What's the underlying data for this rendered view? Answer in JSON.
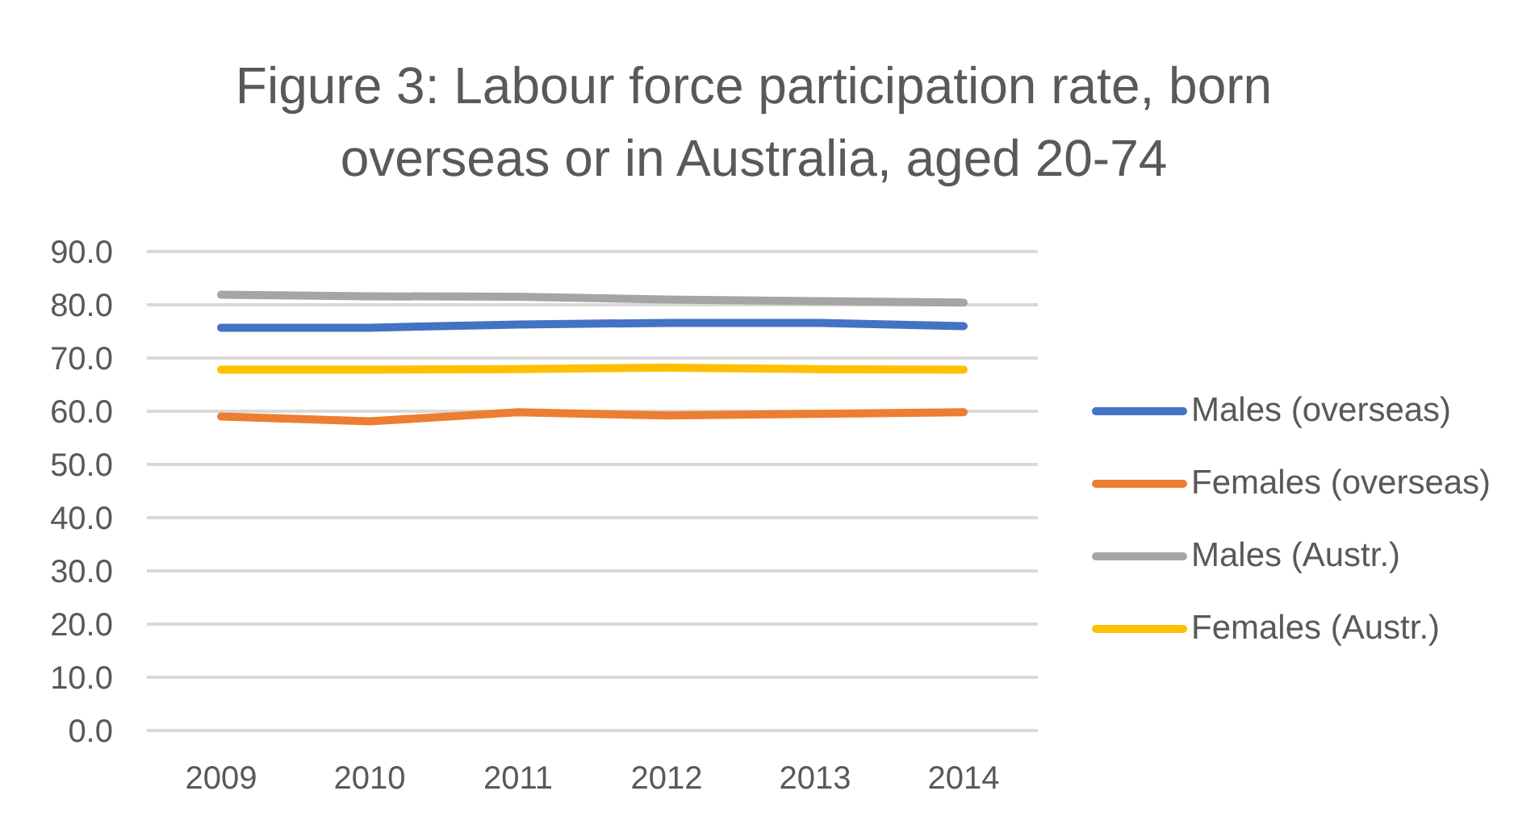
{
  "chart_data": {
    "type": "line",
    "title": "Figure 3: Labour force participation rate, born overseas or in Australia, aged 20-74",
    "categories": [
      "2009",
      "2010",
      "2011",
      "2012",
      "2013",
      "2014"
    ],
    "series": [
      {
        "name": "Males (overseas)",
        "color": "#4472c4",
        "values": [
          75.7,
          75.7,
          76.3,
          76.6,
          76.6,
          76.0
        ]
      },
      {
        "name": "Females (overseas)",
        "color": "#ed7d31",
        "values": [
          59.0,
          58.1,
          59.8,
          59.2,
          59.5,
          59.8
        ]
      },
      {
        "name": "Males (Austr.)",
        "color": "#a5a5a5",
        "values": [
          81.9,
          81.6,
          81.5,
          81.0,
          80.7,
          80.4
        ]
      },
      {
        "name": "Females (Austr.)",
        "color": "#ffc000",
        "values": [
          67.8,
          67.8,
          67.9,
          68.2,
          67.9,
          67.8
        ]
      }
    ],
    "ylim": [
      0,
      90
    ],
    "yticks": [
      {
        "value": 0,
        "label": "0.0"
      },
      {
        "value": 10,
        "label": "10.0"
      },
      {
        "value": 20,
        "label": "20.0"
      },
      {
        "value": 30,
        "label": "30.0"
      },
      {
        "value": 40,
        "label": "40.0"
      },
      {
        "value": 50,
        "label": "50.0"
      },
      {
        "value": 60,
        "label": "60.0"
      },
      {
        "value": 70,
        "label": "70.0"
      },
      {
        "value": 80,
        "label": "80.0"
      },
      {
        "value": 90,
        "label": "90.0"
      }
    ],
    "grid": "y",
    "legend": "right",
    "marker": "none",
    "line_style": "solid"
  }
}
